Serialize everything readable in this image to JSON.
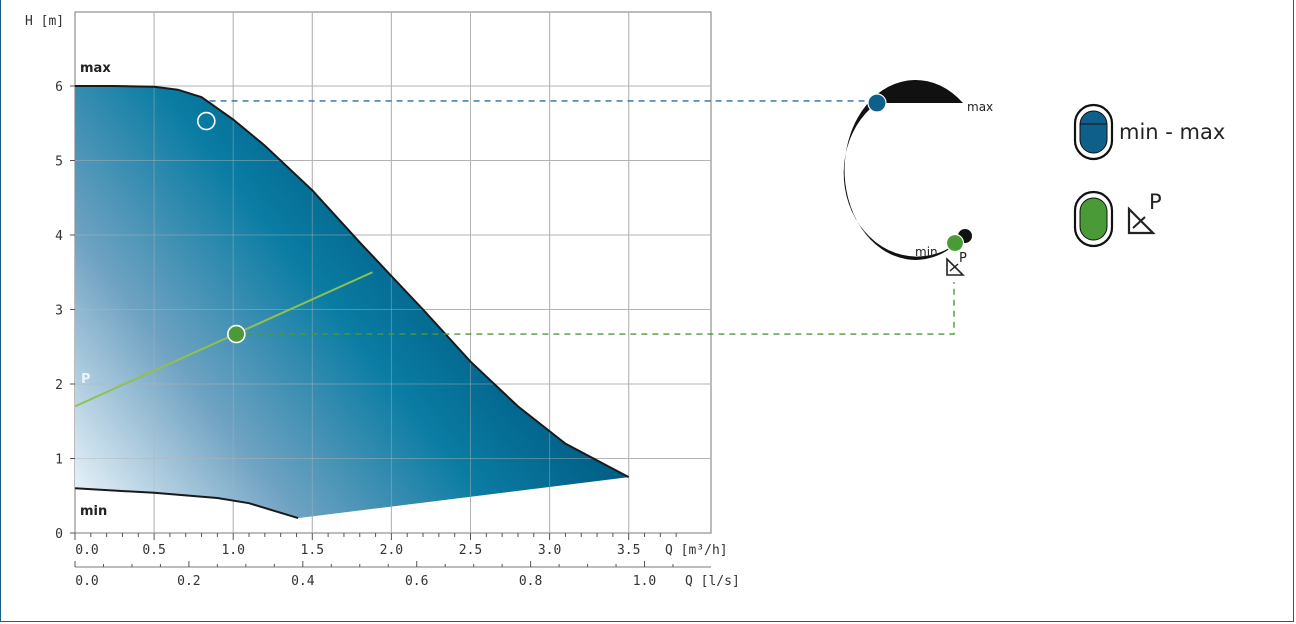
{
  "chart_data": {
    "type": "area",
    "y_axis": {
      "label": "H [m]",
      "range": [
        0,
        6.6
      ],
      "ticks": [
        0,
        1,
        2,
        3,
        4,
        5,
        6
      ],
      "tick_labels": [
        "0",
        "1",
        "2",
        "3",
        "4",
        "5",
        "6"
      ]
    },
    "x_axis_primary": {
      "label": "Q [m³/h]",
      "range": [
        0,
        4.0
      ],
      "ticks": [
        0,
        0.5,
        1.0,
        1.5,
        2.0,
        2.5,
        3.0,
        3.5
      ],
      "tick_labels": [
        "0.0",
        "0.5",
        "1.0",
        "1.5",
        "2.0",
        "2.5",
        "3.0",
        "3.5"
      ]
    },
    "x_axis_secondary": {
      "label": "Q [l/s]",
      "ticks": [
        0,
        0.2,
        0.4,
        0.6,
        0.8,
        1.0
      ],
      "tick_labels": [
        "0.0",
        "0.2",
        "0.4",
        "0.6",
        "0.8",
        "1.0"
      ]
    },
    "grid": true,
    "series": [
      {
        "name": "max",
        "x": [
          0,
          0.25,
          0.5,
          0.65,
          0.8,
          1.0,
          1.2,
          1.5,
          1.8,
          2.0,
          2.2,
          2.5,
          2.8,
          3.1,
          3.5
        ],
        "y": [
          6.0,
          6.0,
          5.99,
          5.95,
          5.85,
          5.55,
          5.2,
          4.6,
          3.9,
          3.45,
          3.0,
          2.3,
          1.7,
          1.2,
          0.75
        ]
      },
      {
        "name": "min",
        "x": [
          0,
          0.5,
          0.9,
          1.1,
          1.41
        ],
        "y": [
          0.6,
          0.54,
          0.47,
          0.4,
          0.2
        ]
      },
      {
        "name": "P",
        "x": [
          0,
          1.88
        ],
        "y": [
          1.7,
          3.5
        ]
      }
    ],
    "operating_points": [
      {
        "series": "max",
        "x": 0.83,
        "y": 5.53,
        "style": "hollow",
        "level": 5.8
      },
      {
        "series": "P",
        "x": 1.02,
        "y": 2.67,
        "style": "green"
      }
    ],
    "colors": {
      "area_dark": "#005a82",
      "area_mid": "#0a7ca3",
      "area_light": "#e6f1f8",
      "curve": "#1a1a1a",
      "p_line": "#8ec14f",
      "max_marker": "#0e5f8a",
      "p_marker": "#4a9a38",
      "grid": "#b3b3b3",
      "frame": "#1f5f86"
    }
  },
  "dial": {
    "max_label": "max",
    "min_label": "min",
    "p_symbol_icon": "proportional-pressure-icon",
    "p_superscript": "P"
  },
  "legend": {
    "items": [
      {
        "label": "min - max",
        "color": "#0e5f8a",
        "icon": "knob-range-icon"
      },
      {
        "label": "",
        "color": "#4a9a38",
        "icon": "proportional-pressure-icon",
        "superscript": "P"
      }
    ]
  }
}
